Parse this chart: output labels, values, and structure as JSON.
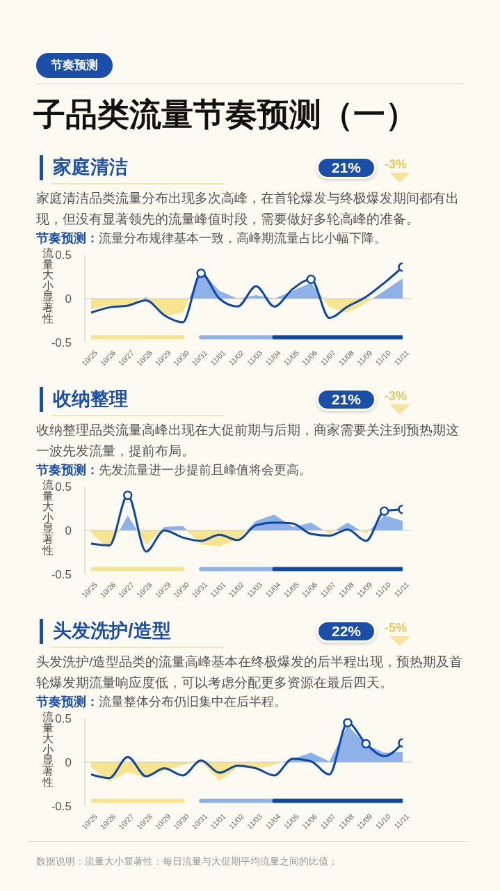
{
  "chart_data": [
    {
      "type": "other",
      "title": "子品类流量节奏预测（一）",
      "annotations": [
        "节奏预测"
      ]
    },
    {
      "type": "line",
      "title": "家庭清洁",
      "subtitle": "家庭清洁品类流量分布出现多次高峰，在首轮爆发与终极爆发期间都有出现，但没有显著领先的流量峰值时段，需要做好多轮高峰的准备。",
      "ylabel": "流量大小显著性",
      "annotations": [
        "21%",
        "-3%",
        "节奏预测：",
        "流量分布规律基本一致，高峰期流量占比小幅下降。"
      ],
      "categories": [
        "10/25",
        "10/26",
        "10/27",
        "10/28",
        "10/29",
        "10/30",
        "10/31",
        "11/01",
        "11/02",
        "11/03",
        "11/04",
        "11/05",
        "11/06",
        "11/07",
        "11/08",
        "11/09",
        "11/10",
        "11/11"
      ],
      "series": [
        {
          "type": "area",
          "colors": [
            "#f7e48f",
            "#f7e48f",
            "#f7e48f",
            "#8eb1e8",
            "#f7e48f",
            "#f7e48f",
            "#8eb1e8",
            "#8eb1e8",
            "#8eb1e8",
            "#8eb1e8",
            "#8eb1e8",
            "#8eb1e8",
            "#8eb1e8",
            "#f7e48f",
            "#f7e48f",
            "#f7e48f",
            "#8eb1e8",
            "#8eb1e8"
          ],
          "values": [
            -0.12,
            -0.08,
            -0.07,
            0.02,
            -0.2,
            -0.16,
            0.31,
            0.09,
            0.0,
            0.04,
            0.0,
            0.09,
            0.18,
            -0.1,
            -0.16,
            -0.05,
            0.09,
            0.23
          ]
        },
        {
          "color": "#f7e48f",
          "values": [
            -0.44,
            -0.44,
            -0.44,
            -0.44,
            -0.44,
            -0.44,
            null,
            null,
            null,
            null,
            null,
            null,
            null,
            null,
            null,
            null,
            null,
            null
          ]
        },
        {
          "color": "#8eb1e8",
          "values": [
            null,
            null,
            null,
            null,
            null,
            null,
            -0.44,
            -0.44,
            -0.44,
            -0.44,
            -0.44,
            null,
            null,
            null,
            null,
            null,
            null,
            null
          ]
        },
        {
          "color": "#0d47a1",
          "values": [
            null,
            null,
            null,
            null,
            null,
            null,
            null,
            null,
            null,
            null,
            -0.44,
            -0.44,
            -0.44,
            -0.44,
            -0.44,
            -0.44,
            -0.44,
            -0.44
          ]
        },
        {
          "color": "#0d47a1",
          "values": [
            -0.16,
            -0.1,
            -0.08,
            -0.02,
            -0.19,
            -0.27,
            0.29,
            0.0,
            -0.09,
            0.14,
            -0.09,
            0.11,
            0.22,
            -0.22,
            -0.09,
            0.02,
            0.18,
            0.36
          ]
        },
        {
          "type": "scatter",
          "color": "#0d47a1",
          "marker": "circle",
          "values": [
            null,
            null,
            null,
            null,
            null,
            null,
            0.29,
            null,
            null,
            null,
            null,
            null,
            0.22,
            null,
            null,
            null,
            null,
            0.36
          ]
        }
      ],
      "ylim": [
        -0.5,
        0.5
      ],
      "yticks": [
        -0.5,
        0,
        0.5
      ],
      "ref_lines": [
        {
          "axis": "y",
          "value": 0,
          "color": "#c9c6bd"
        }
      ]
    },
    {
      "type": "line",
      "title": "收纳整理",
      "subtitle": "收纳整理品类流量高峰出现在大促前期与后期，商家需要关注到预热期这一波先发流量，提前布局。",
      "ylabel": "流量大小显著性",
      "annotations": [
        "21%",
        "-3%",
        "节奏预测：",
        "先发流量进一步提前且峰值将会更高。"
      ],
      "categories": [
        "10/25",
        "10/26",
        "10/27",
        "10/28",
        "10/29",
        "10/30",
        "10/31",
        "11/01",
        "11/02",
        "11/03",
        "11/04",
        "11/05",
        "11/06",
        "11/07",
        "11/08",
        "11/09",
        "11/10",
        "11/11"
      ],
      "series": [
        {
          "type": "area",
          "colors": [
            "#f7e48f",
            "#f7e48f",
            "#8eb1e8",
            "#f7e48f",
            "#8eb1e8",
            "#8eb1e8",
            "#f7e48f",
            "#f7e48f",
            "#f7e48f",
            "#8eb1e8",
            "#8eb1e8",
            "#8eb1e8",
            "#8eb1e8",
            "#f7e48f",
            "#8eb1e8",
            "#f7e48f",
            "#8eb1e8",
            "#8eb1e8"
          ],
          "values": [
            -0.03,
            -0.21,
            0.17,
            -0.16,
            0.04,
            0.05,
            -0.16,
            -0.18,
            -0.11,
            0.11,
            0.18,
            0.04,
            0.09,
            -0.04,
            0.09,
            -0.04,
            0.17,
            0.11
          ]
        },
        {
          "color": "#f7e48f",
          "values": [
            -0.44,
            -0.44,
            -0.44,
            -0.44,
            -0.44,
            -0.44,
            null,
            null,
            null,
            null,
            null,
            null,
            null,
            null,
            null,
            null,
            null,
            null
          ]
        },
        {
          "color": "#8eb1e8",
          "values": [
            null,
            null,
            null,
            null,
            null,
            null,
            -0.44,
            -0.44,
            -0.44,
            -0.44,
            -0.44,
            null,
            null,
            null,
            null,
            null,
            null,
            null
          ]
        },
        {
          "color": "#0d47a1",
          "values": [
            null,
            null,
            null,
            null,
            null,
            null,
            null,
            null,
            null,
            null,
            -0.44,
            -0.44,
            -0.44,
            -0.44,
            -0.44,
            -0.44,
            -0.44,
            -0.44
          ]
        },
        {
          "color": "#0d47a1",
          "values": [
            -0.15,
            -0.17,
            0.4,
            -0.24,
            0.0,
            -0.08,
            -0.12,
            -0.05,
            -0.11,
            0.06,
            0.09,
            0.08,
            -0.04,
            -0.06,
            0.01,
            -0.12,
            0.22,
            0.24
          ]
        },
        {
          "type": "scatter",
          "color": "#0d47a1",
          "marker": "circle",
          "values": [
            null,
            null,
            0.4,
            null,
            null,
            null,
            null,
            null,
            null,
            null,
            null,
            null,
            null,
            null,
            null,
            null,
            0.22,
            0.24
          ]
        }
      ],
      "ylim": [
        -0.5,
        0.5
      ],
      "yticks": [
        -0.5,
        0,
        0.5
      ],
      "ref_lines": [
        {
          "axis": "y",
          "value": 0,
          "color": "#c9c6bd"
        }
      ]
    },
    {
      "type": "line",
      "title": "头发洗护/造型",
      "subtitle": "头发洗护/造型品类的流量高峰基本在终极爆发的后半程出现，预热期及首轮爆发期流量响应度低，可以考虑分配更多资源在最后四天。",
      "ylabel": "流量大小显著性",
      "annotations": [
        "22%",
        "-5%",
        "节奏预测：",
        "流量整体分布仍旧集中在后半程。",
        "数据说明：流量大小显著性：每日流量与大促期平均流量之间的比值；"
      ],
      "categories": [
        "10/25",
        "10/26",
        "10/27",
        "10/28",
        "10/29",
        "10/30",
        "10/31",
        "11/01",
        "11/02",
        "11/03",
        "11/04",
        "11/05",
        "11/06",
        "11/07",
        "11/08",
        "11/09",
        "11/10",
        "11/11"
      ],
      "series": [
        {
          "type": "area",
          "colors": [
            "#f7e48f",
            "#f7e48f",
            "#f7e48f",
            "#f7e48f",
            "#f7e48f",
            "#f7e48f",
            "#8eb1e8",
            "#f7e48f",
            "#f7e48f",
            "#f7e48f",
            "#f7e48f",
            "#8eb1e8",
            "#8eb1e8",
            "#8eb1e8",
            "#8eb1e8",
            "#8eb1e8",
            "#8eb1e8",
            "#8eb1e8"
          ],
          "values": [
            -0.06,
            -0.22,
            -0.11,
            -0.18,
            -0.1,
            -0.03,
            0.01,
            -0.21,
            -0.06,
            -0.08,
            -0.03,
            0.04,
            0.11,
            0.01,
            0.42,
            0.2,
            0.11,
            0.12
          ]
        },
        {
          "color": "#f7e48f",
          "values": [
            -0.44,
            -0.44,
            -0.44,
            -0.44,
            -0.44,
            -0.44,
            null,
            null,
            null,
            null,
            null,
            null,
            null,
            null,
            null,
            null,
            null,
            null
          ]
        },
        {
          "color": "#8eb1e8",
          "values": [
            null,
            null,
            null,
            null,
            null,
            null,
            -0.44,
            -0.44,
            -0.44,
            -0.44,
            -0.44,
            null,
            null,
            null,
            null,
            null,
            null,
            null
          ]
        },
        {
          "color": "#0d47a1",
          "values": [
            null,
            null,
            null,
            null,
            null,
            null,
            null,
            null,
            null,
            null,
            -0.44,
            -0.44,
            -0.44,
            -0.44,
            -0.44,
            -0.44,
            -0.44,
            -0.44
          ]
        },
        {
          "color": "#0d47a1",
          "values": [
            -0.14,
            -0.18,
            0.06,
            -0.16,
            -0.07,
            -0.15,
            0.02,
            -0.12,
            -0.04,
            -0.07,
            -0.15,
            0.04,
            0.01,
            -0.14,
            0.45,
            0.21,
            0.07,
            0.22
          ]
        },
        {
          "type": "scatter",
          "color": "#0d47a1",
          "marker": "circle",
          "values": [
            null,
            null,
            null,
            null,
            null,
            null,
            null,
            null,
            null,
            null,
            null,
            null,
            null,
            null,
            0.45,
            0.21,
            null,
            0.22
          ]
        }
      ],
      "ylim": [
        -0.5,
        0.5
      ],
      "yticks": [
        -0.5,
        0,
        0.5
      ],
      "ref_lines": [
        {
          "axis": "y",
          "value": 0,
          "color": "#c9c6bd"
        }
      ]
    }
  ]
}
